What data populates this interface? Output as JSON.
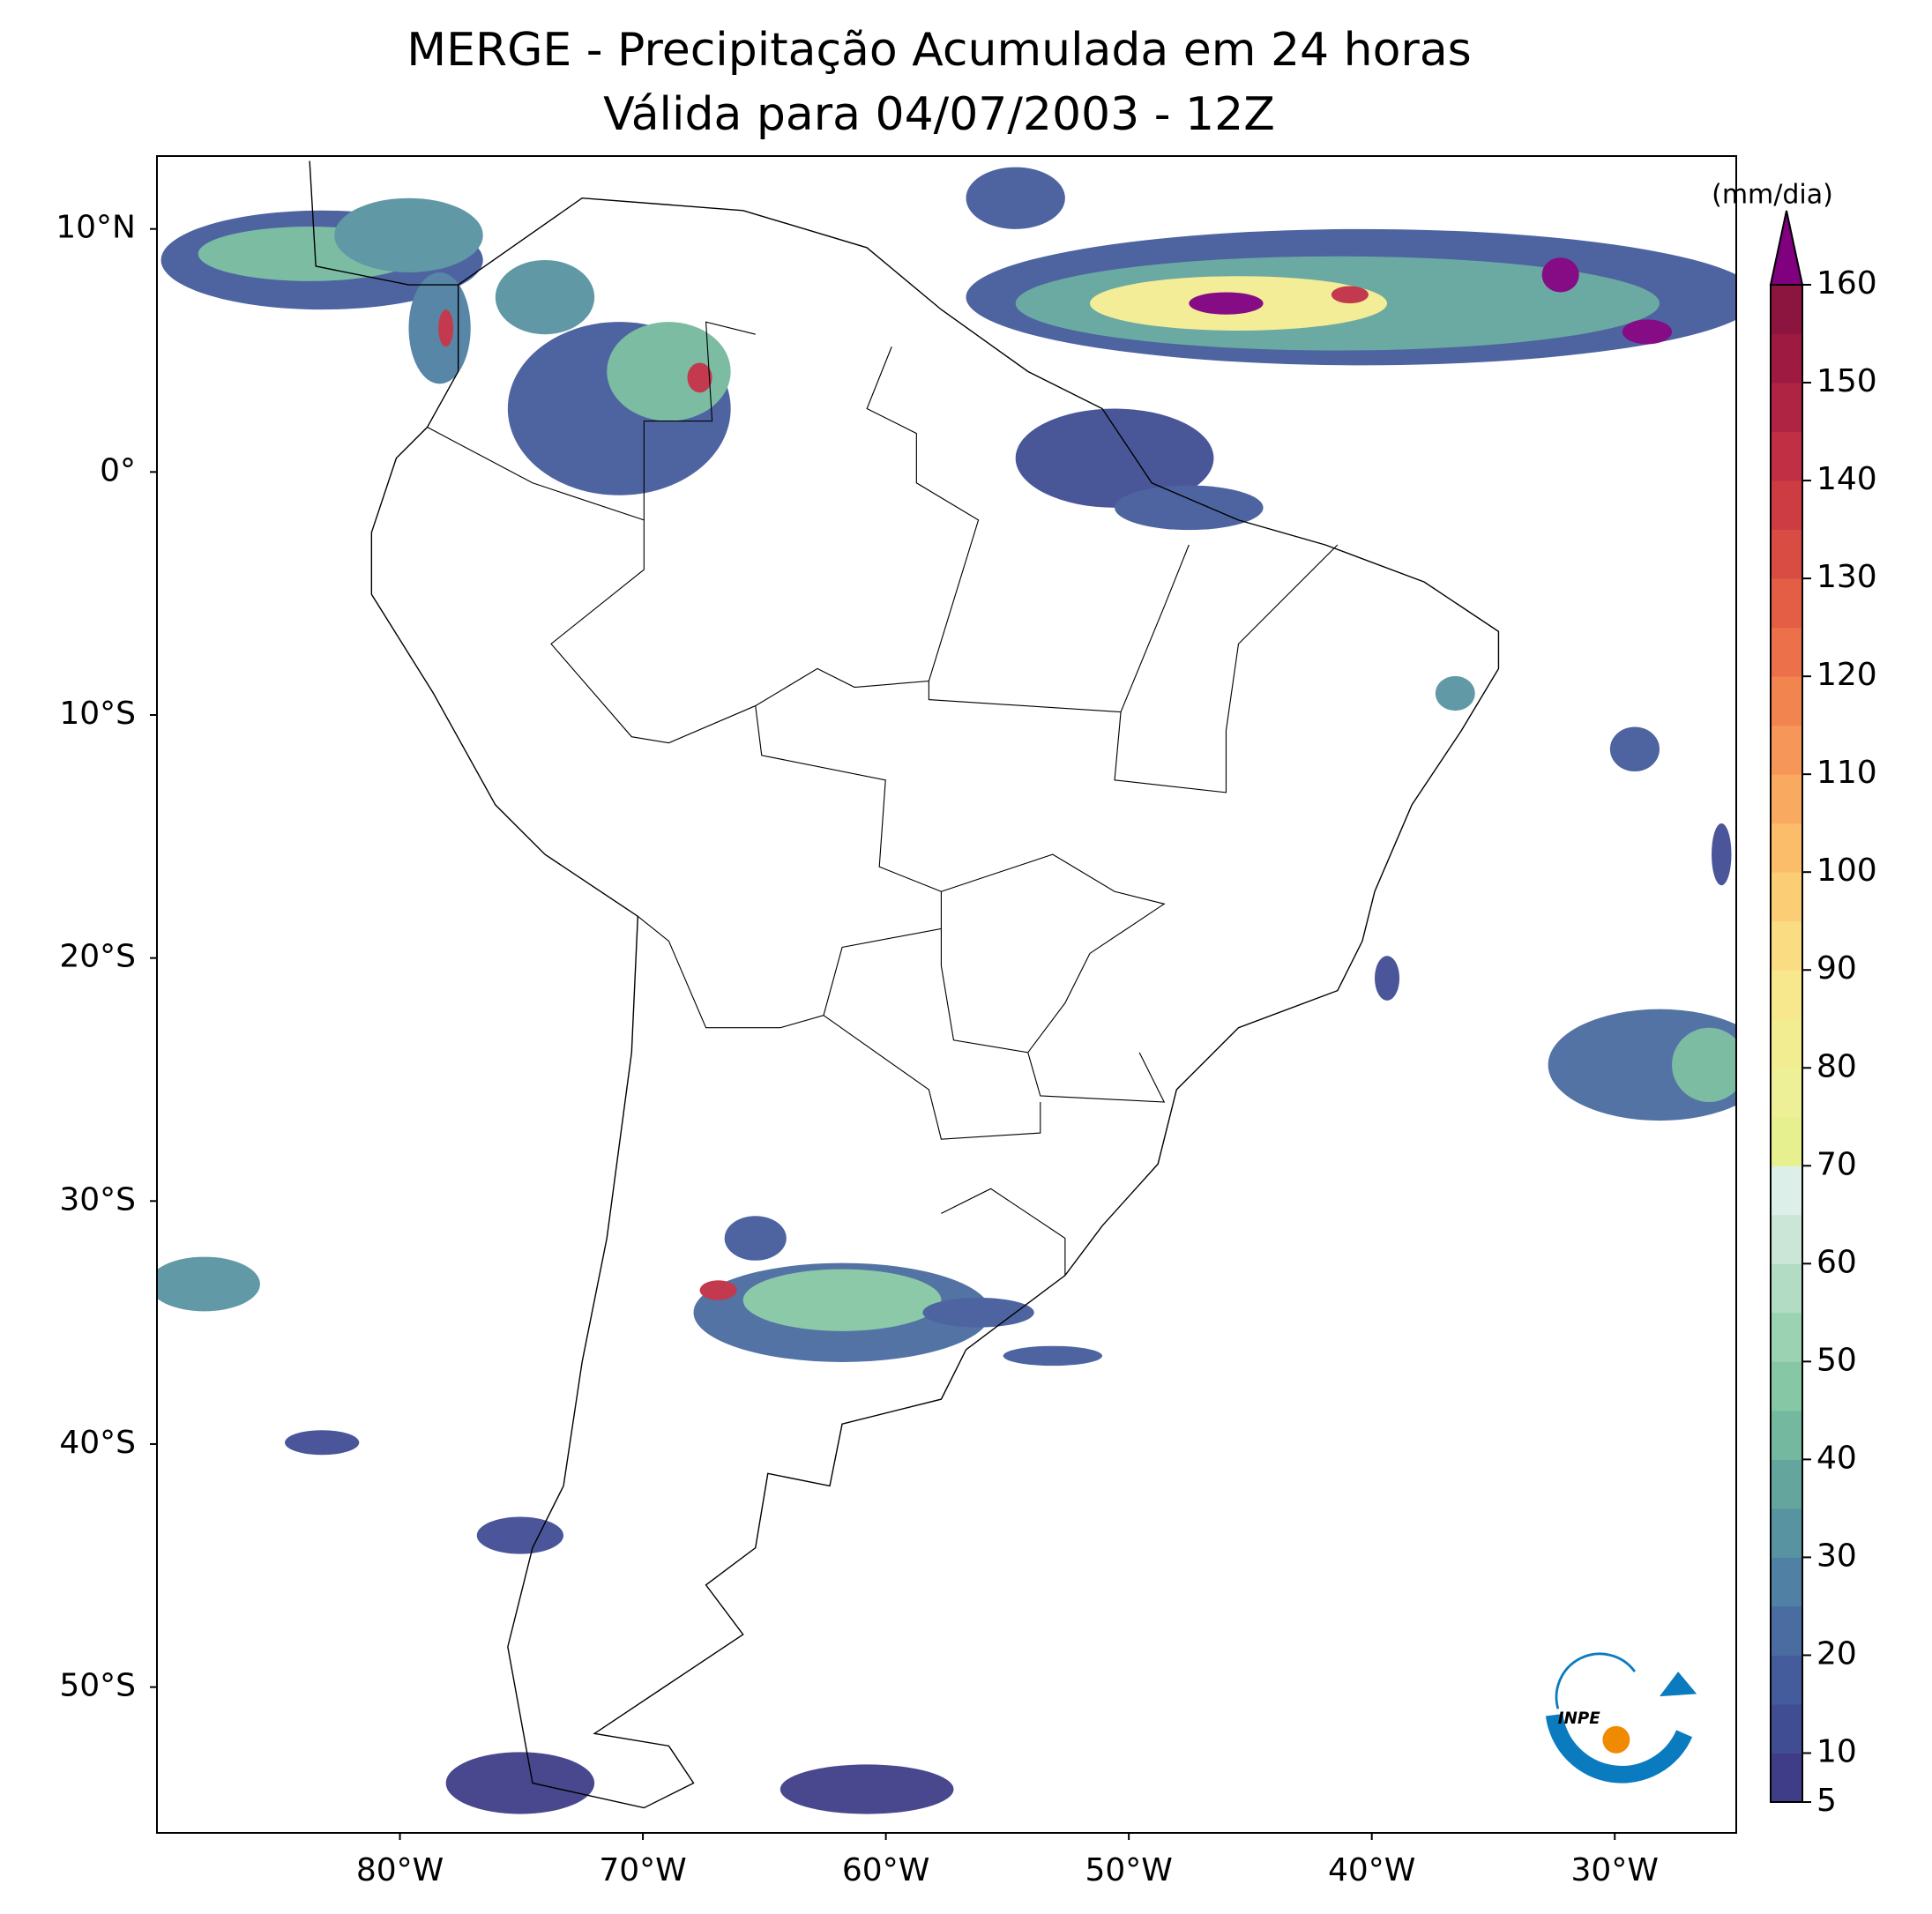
{
  "title": "MERGE - Precipitação Acumulada em 24 horas",
  "subtitle": "Válida para 04/07/2003 - 12Z",
  "map": {
    "xlim": [
      -90,
      -25
    ],
    "ylim": [
      -56,
      13
    ],
    "xticks": [
      {
        "value": -80,
        "label": "80°W"
      },
      {
        "value": -70,
        "label": "70°W"
      },
      {
        "value": -60,
        "label": "60°W"
      },
      {
        "value": -50,
        "label": "50°W"
      },
      {
        "value": -40,
        "label": "40°W"
      },
      {
        "value": -30,
        "label": "30°W"
      }
    ],
    "yticks": [
      {
        "value": 10,
        "label": "10°N"
      },
      {
        "value": 0,
        "label": "0°"
      },
      {
        "value": -10,
        "label": "10°S"
      },
      {
        "value": -20,
        "label": "20°S"
      },
      {
        "value": -30,
        "label": "30°S"
      },
      {
        "value": -40,
        "label": "40°S"
      },
      {
        "value": -50,
        "label": "50°S"
      }
    ]
  },
  "colorbar": {
    "label": "(mm/dia)",
    "levels": [
      5,
      10,
      15,
      20,
      25,
      30,
      35,
      40,
      45,
      50,
      55,
      60,
      65,
      70,
      75,
      80,
      85,
      90,
      95,
      100,
      105,
      110,
      115,
      120,
      125,
      130,
      135,
      140,
      145,
      150,
      155,
      160
    ],
    "colors": [
      "#3f3d88",
      "#404d93",
      "#455c9c",
      "#4a6ca1",
      "#5080a3",
      "#5893a2",
      "#64a69e",
      "#74b99f",
      "#86c7a5",
      "#9bd2b2",
      "#b2dcc3",
      "#cbe6d6",
      "#dcefe8",
      "#e6f08e",
      "#edf096",
      "#f3ed92",
      "#f7e78d",
      "#fadc82",
      "#fbcd74",
      "#fbbd6a",
      "#f9a960",
      "#f69658",
      "#f28450",
      "#ec714a",
      "#e45e45",
      "#d94c43",
      "#cd3c43",
      "#c02f44",
      "#b02443",
      "#9e1a41",
      "#8c1540"
    ],
    "extend": "max",
    "over_color": "#800080",
    "ticks": [
      5,
      10,
      20,
      30,
      40,
      50,
      60,
      70,
      80,
      90,
      100,
      110,
      120,
      130,
      140,
      150,
      160
    ]
  },
  "logo_text": "INPE"
}
